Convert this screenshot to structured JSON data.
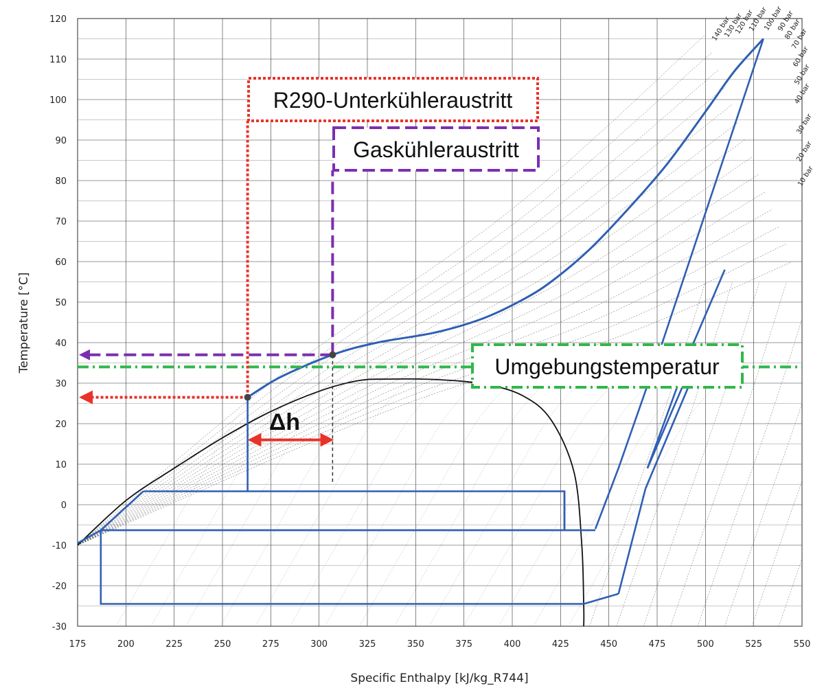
{
  "chart_data": {
    "type": "line",
    "xlabel": "Specific Enthalpy [kJ/kg_R744]",
    "ylabel": "Temperature [°C]",
    "xlim": [
      175,
      550
    ],
    "ylim": [
      -30,
      120
    ],
    "x_ticks": [
      175,
      200,
      225,
      250,
      275,
      300,
      325,
      350,
      375,
      400,
      425,
      450,
      475,
      500,
      525,
      550
    ],
    "y_ticks": [
      -30,
      -20,
      -10,
      0,
      10,
      20,
      30,
      40,
      50,
      60,
      70,
      80,
      90,
      100,
      110,
      120
    ],
    "grid": true,
    "colors": {
      "cycle": "#2f5fb3",
      "dome": "#111111",
      "red": "#e8332a",
      "purple": "#7b2fb0",
      "green": "#2fb84a",
      "grid": "#333333",
      "isobar": "#555555",
      "marker": "#444444"
    },
    "isobar_labels": [
      "140 bar",
      "130 bar",
      "120 bar",
      "110 bar",
      "100 bar",
      "90 bar",
      "80 bar",
      "70 bar",
      "60 bar",
      "50 bar",
      "40 bar",
      "30 bar",
      "20 bar",
      "10 bar"
    ],
    "saturation_dome": [
      [
        175,
        -10
      ],
      [
        200,
        1
      ],
      [
        225,
        9
      ],
      [
        250,
        16.5
      ],
      [
        275,
        23
      ],
      [
        300,
        28
      ],
      [
        320,
        30.6
      ],
      [
        335,
        31
      ],
      [
        360,
        30.9
      ],
      [
        385,
        29.8
      ],
      [
        405,
        27
      ],
      [
        420,
        21
      ],
      [
        432,
        8
      ],
      [
        436,
        -10
      ],
      [
        437,
        -25
      ],
      [
        437,
        -30
      ]
    ],
    "transcritical_curve": [
      [
        263,
        26.5
      ],
      [
        280,
        31.5
      ],
      [
        307,
        37
      ],
      [
        330,
        40
      ],
      [
        360,
        42.5
      ],
      [
        385,
        46
      ],
      [
        405,
        50.5
      ],
      [
        420,
        55
      ],
      [
        440,
        63
      ],
      [
        460,
        73
      ],
      [
        480,
        84
      ],
      [
        500,
        97
      ],
      [
        515,
        107
      ],
      [
        530,
        115
      ]
    ],
    "compressor_lines": [
      [
        [
          530,
          115
        ],
        [
          477,
          39
        ]
      ],
      [
        [
          477,
          39
        ],
        [
          455,
          9
        ]
      ],
      [
        [
          510,
          58
        ],
        [
          493,
          39
        ]
      ],
      [
        [
          493,
          39
        ],
        [
          470,
          9
        ]
      ],
      [
        [
          455,
          9
        ],
        [
          443,
          -6
        ]
      ],
      [
        [
          470,
          9
        ],
        [
          488,
          29
        ]
      ],
      [
        [
          488,
          29
        ],
        [
          496,
          39
        ]
      ],
      [
        [
          469,
          4
        ],
        [
          455,
          -22
        ]
      ],
      [
        [
          455,
          -22
        ],
        [
          437,
          -24.5
        ]
      ],
      [
        [
          469,
          4
        ],
        [
          492,
          30
        ]
      ]
    ],
    "cycle_boxes": [
      [
        [
          209,
          3.3
        ],
        [
          427,
          3.3
        ],
        [
          427,
          -6.3
        ],
        [
          187,
          -6.3
        ]
      ],
      [
        [
          187,
          -6.3
        ],
        [
          443,
          -6.3
        ]
      ],
      [
        [
          187,
          -6.3
        ],
        [
          187,
          -24.5
        ],
        [
          437,
          -24.5
        ]
      ]
    ],
    "cycle_verticals": [
      [
        [
          263,
          26.5
        ],
        [
          263,
          3.3
        ]
      ],
      [
        [
          427,
          3.3
        ],
        [
          427,
          -6.3
        ]
      ],
      [
        [
          209,
          3.3
        ],
        [
          187,
          -6.3
        ]
      ],
      [
        [
          187,
          -6.3
        ],
        [
          175,
          -9.5
        ]
      ]
    ],
    "points": [
      {
        "name": "R290-Unterkühleraustritt",
        "x": 263,
        "y": 26.5
      },
      {
        "name": "Gaskühleraustritt",
        "x": 307,
        "y": 37
      }
    ],
    "reference_lines": {
      "ambient_temperature": 34,
      "gascooler_outlet_temperature": 37,
      "r290_subcooler_outlet_temperature": 26.5,
      "gascooler_outlet_enthalpy": 307,
      "r290_subcooler_outlet_enthalpy": 263
    },
    "annotations": {
      "r290": "R290-Unterkühleraustritt",
      "gascooler": "Gaskühleraustritt",
      "ambient": "Umgebungstemperatur",
      "delta_h": "Δh"
    }
  }
}
